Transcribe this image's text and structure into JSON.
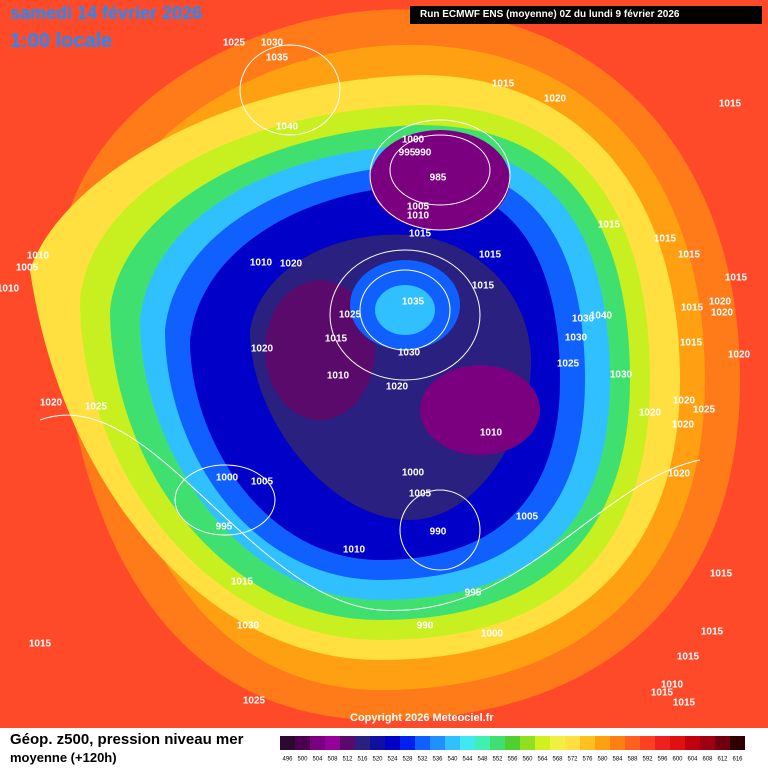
{
  "header": {
    "date": "samedi 14 février 2026",
    "time": "1:00 locale",
    "run": "Run ECMWF ENS (moyenne) 0Z du lundi 9 février 2026"
  },
  "copyright": "Copyright 2026 Meteociel.fr",
  "legend": {
    "line1": "Géop. z500, pression niveau mer",
    "line2": "moyenne  (+120h)"
  },
  "colorbar": {
    "values": [
      496,
      500,
      504,
      508,
      512,
      516,
      520,
      524,
      528,
      532,
      536,
      540,
      544,
      548,
      552,
      556,
      560,
      564,
      568,
      572,
      576,
      580,
      584,
      588,
      592,
      596,
      600,
      604,
      608,
      612,
      616
    ],
    "colors": [
      "#2a0a30",
      "#4b0050",
      "#7a0080",
      "#96009a",
      "#5a0a6a",
      "#2a2080",
      "#1010a0",
      "#0000c8",
      "#0020f0",
      "#1060ff",
      "#2090ff",
      "#30c0ff",
      "#40e8f0",
      "#40f0b0",
      "#40e070",
      "#50d030",
      "#90e020",
      "#d0f020",
      "#f0f040",
      "#ffe040",
      "#ffc020",
      "#ffa010",
      "#ff8010",
      "#ff6020",
      "#ff4020",
      "#f02020",
      "#e01010",
      "#c00010",
      "#a00010",
      "#700010",
      "#300000"
    ]
  },
  "pressure_labels": [
    "1025",
    "1030",
    "1035",
    "1040",
    "1015",
    "1020",
    "1015",
    "1000",
    "995",
    "990",
    "985",
    "1005",
    "1010",
    "1015",
    "1015",
    "1015",
    "1015",
    "1015",
    "1015",
    "1015",
    "1010",
    "1005",
    "1010",
    "1010",
    "1020",
    "1025",
    "1035",
    "1030",
    "1015",
    "1010",
    "1020",
    "1020",
    "1030",
    "1040",
    "1030",
    "1025",
    "1030",
    "1020",
    "1025",
    "1000",
    "1005",
    "995",
    "1000",
    "1005",
    "990",
    "1005",
    "1010",
    "1010",
    "1015",
    "995",
    "990",
    "1000",
    "1030",
    "1015",
    "1025",
    "1020",
    "1020",
    "1025",
    "1020",
    "1020",
    "1015",
    "1015",
    "1015",
    "1010",
    "1015",
    "1015",
    "1020",
    "1015",
    "1020",
    "1020",
    "1015"
  ]
}
